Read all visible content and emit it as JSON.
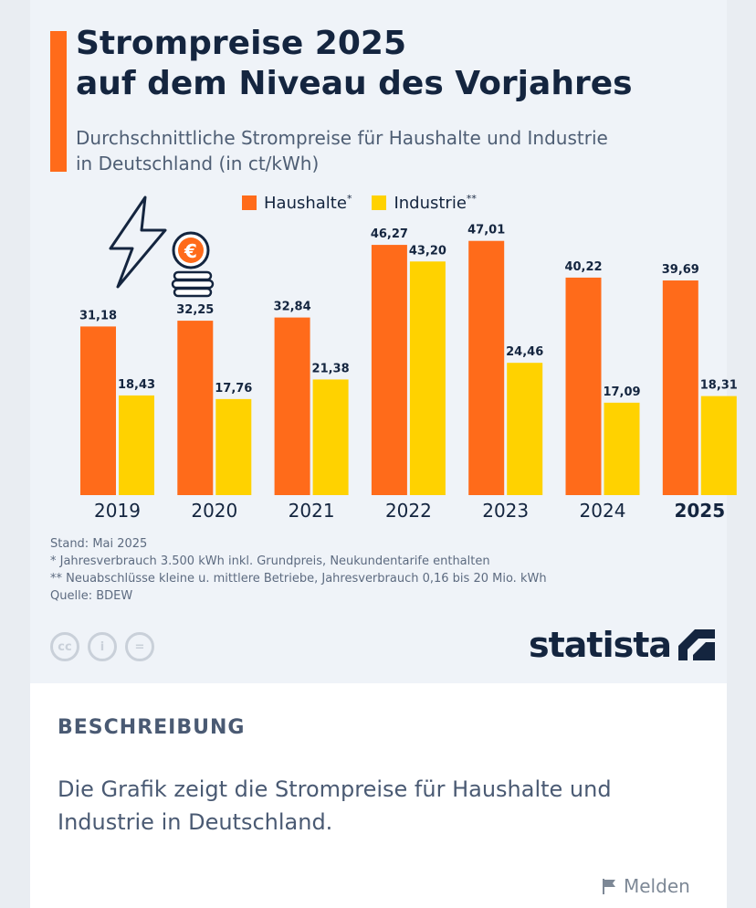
{
  "infographic": {
    "title_lines": [
      "Strompreise 2025",
      "auf dem Niveau des Vorjahres"
    ],
    "subtitle_lines": [
      "Durchschnittliche Strompreise für Haushalte und Industrie",
      "in Deutschland (in ct/kWh)"
    ],
    "accent_color": "#ff6b1a",
    "notes": {
      "stand": "Stand: Mai 2025",
      "note1": "*   Jahresverbrauch 3.500 kWh inkl. Grundpreis, Neukundentarife enthalten",
      "note2": "** Neuabschlüsse kleine u. mittlere Betriebe, Jahresverbrauch 0,16 bis 20 Mio. kWh",
      "source": "Quelle: BDEW"
    },
    "license": {
      "cc": "cc",
      "by": "i",
      "nd": "="
    },
    "brand": "statista",
    "icons": [
      "lightning-icon",
      "euro-coin-icon",
      "coin-stack-icon"
    ]
  },
  "chart_data": {
    "type": "bar",
    "categories": [
      "2019",
      "2020",
      "2021",
      "2022",
      "2023",
      "2024",
      "2025"
    ],
    "highlight_category": "2025",
    "series": [
      {
        "name": "Haushalte*",
        "color": "#ff6b1a",
        "values": [
          31.18,
          32.25,
          32.84,
          46.27,
          47.01,
          40.22,
          39.69
        ],
        "labels": [
          "31,18",
          "32,25",
          "32,84",
          "46,27",
          "47,01",
          "40,22",
          "39,69"
        ]
      },
      {
        "name": "Industrie**",
        "color": "#ffd200",
        "values": [
          18.43,
          17.76,
          21.38,
          43.2,
          24.46,
          17.09,
          18.31
        ],
        "labels": [
          "18,43",
          "17,76",
          "21,38",
          "43,20",
          "24,46",
          "17,09",
          "18,31"
        ]
      }
    ],
    "legend": {
      "haushalte": "Haushalte",
      "haushalte_mark": "*",
      "industrie": "Industrie",
      "industrie_mark": "**"
    },
    "ylim": [
      0,
      50
    ],
    "grid": false,
    "legend_position": "top-center"
  },
  "description": {
    "heading": "BESCHREIBUNG",
    "text_lines": [
      "Die Grafik zeigt die Strompreise für Haushalte und",
      "Industrie in Deutschland."
    ]
  },
  "report_label": "Melden"
}
